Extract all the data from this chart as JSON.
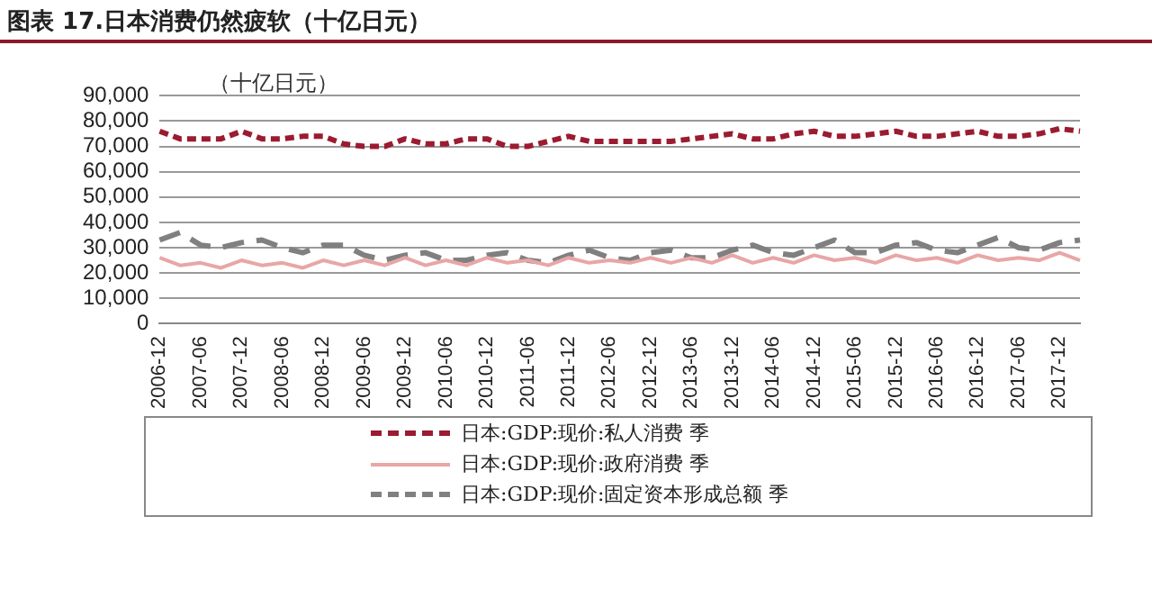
{
  "chart_data": {
    "type": "line",
    "title": "图表 17.日本消费仍然疲软（十亿日元）",
    "ylabel": "（十亿日元）",
    "categories": [
      "2006-12",
      null,
      "2007-06",
      null,
      "2007-12",
      null,
      "2008-06",
      null,
      "2008-12",
      null,
      "2009-06",
      null,
      "2009-12",
      null,
      "2010-06",
      null,
      "2010-12",
      null,
      "2011-06",
      null,
      "2011-12",
      null,
      "2012-06",
      null,
      "2012-12",
      null,
      "2013-06",
      null,
      "2013-12",
      null,
      "2014-06",
      null,
      "2014-12",
      null,
      "2015-06",
      null,
      "2015-12",
      null,
      "2016-06",
      null,
      "2016-12",
      null,
      "2017-06",
      null,
      "2017-12",
      null
    ],
    "series": [
      {
        "name": "日本:GDP:现价:私人消费 季",
        "color": "#9b1b30",
        "line_style": "dashed",
        "values": [
          76000,
          73000,
          73000,
          73000,
          76000,
          73000,
          73000,
          74000,
          74000,
          71000,
          70000,
          70000,
          73000,
          71000,
          71000,
          73000,
          73000,
          70000,
          70000,
          72000,
          74000,
          72000,
          72000,
          72000,
          72000,
          72000,
          73000,
          74000,
          75000,
          73000,
          73000,
          75000,
          76000,
          74000,
          74000,
          75000,
          76000,
          74000,
          74000,
          75000,
          76000,
          74000,
          74000,
          75000,
          77000,
          76000
        ]
      },
      {
        "name": "日本:GDP:现价:政府消费 季",
        "color": "#e8a6a6",
        "line_style": "solid",
        "values": [
          26000,
          23000,
          24000,
          22000,
          25000,
          23000,
          24000,
          22000,
          25000,
          23000,
          25000,
          23000,
          26000,
          23000,
          25000,
          23000,
          26000,
          24000,
          25000,
          23000,
          26000,
          24000,
          25000,
          24000,
          26000,
          24000,
          26000,
          24000,
          27000,
          24000,
          26000,
          24000,
          27000,
          25000,
          26000,
          24000,
          27000,
          25000,
          26000,
          24000,
          27000,
          25000,
          26000,
          25000,
          28000,
          25000
        ]
      },
      {
        "name": "日本:GDP:现价:固定资本形成总额 季",
        "color": "#808080",
        "line_style": "longdash",
        "values": [
          33000,
          36000,
          31000,
          30000,
          32000,
          33000,
          30000,
          28000,
          31000,
          31000,
          27000,
          25000,
          27000,
          28000,
          25000,
          25000,
          27000,
          28000,
          25000,
          24000,
          27000,
          29000,
          26000,
          25000,
          28000,
          29000,
          26000,
          26000,
          29000,
          31000,
          28000,
          27000,
          30000,
          33000,
          28000,
          28000,
          31000,
          32000,
          29000,
          28000,
          31000,
          34000,
          30000,
          29000,
          32000,
          33000
        ]
      }
    ],
    "ylim": [
      0,
      90000
    ],
    "yticks": [
      0,
      {
        "value": 10000,
        "label": "10,000"
      },
      {
        "value": 20000,
        "label": "20,000"
      },
      {
        "value": 30000,
        "label": "30,000"
      },
      {
        "value": 40000,
        "label": "40,000"
      },
      {
        "value": 50000,
        "label": "50,000"
      },
      {
        "value": 60000,
        "label": "60,000"
      },
      {
        "value": 70000,
        "label": "70,000"
      },
      {
        "value": 80000,
        "label": "80,000"
      },
      {
        "value": 90000,
        "label": "90,000"
      }
    ],
    "grid": "y",
    "legend": "bottom",
    "marker": "none"
  }
}
